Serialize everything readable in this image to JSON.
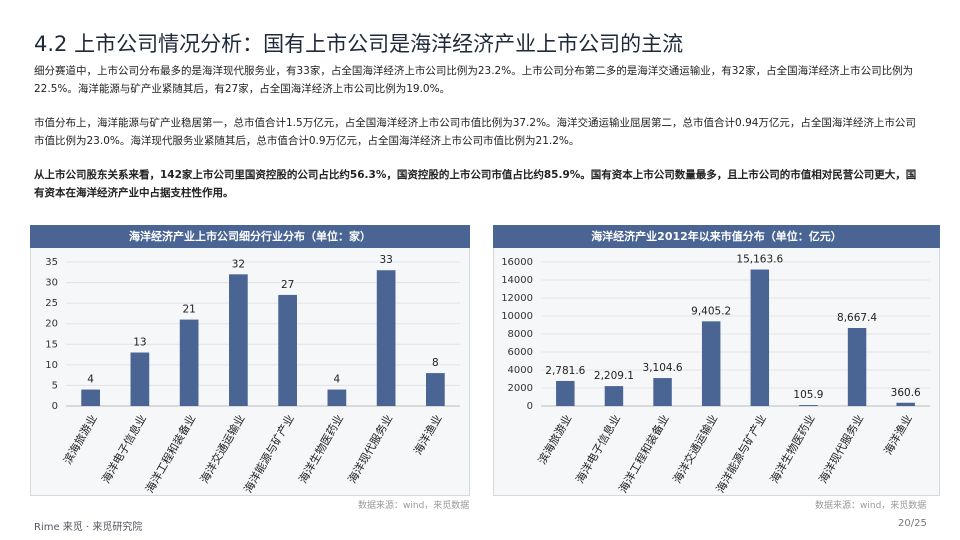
{
  "header": {
    "title": "4.2 上市公司情况分析：国有上市公司是海洋经济产业上市公司的主流"
  },
  "paragraphs": [
    "细分赛道中，上市公司分布最多的是海洋现代服务业，有33家，占全国海洋经济上市公司比例为23.2%。上市公司分布第二多的是海洋交通运输业，有32家，占全国海洋经济上市公司比例为22.5%。海洋能源与矿产业紧随其后，有27家，占全国海洋经济上市公司比例为19.0%。",
    "市值分布上，海洋能源与矿产业稳居第一，总市值合计1.5万亿元，占全国海洋经济上市公司市值比例为37.2%。海洋交通运输业屈居第二，总市值合计0.94万亿元，占全国海洋经济上市公司市值比例为23.0%。海洋现代服务业紧随其后，总市值合计0.9万亿元，占全国海洋经济上市公司市值比例为21.2%。",
    "从上市公司股东关系来看，142家上市公司里国资控股的公司占比约56.3%，国资控股的上市公司市值占比约85.9%。国有资本上市公司数量最多，且上市公司的市值相对民营公司更大，国有资本在海洋经济产业中占据支柱性作用。"
  ],
  "chart_data": [
    {
      "type": "bar",
      "title": "海洋经济产业上市公司细分行业分布（单位：家）",
      "categories": [
        "滨海旅游业",
        "海洋电子信息业",
        "海洋工程和装备业",
        "海洋交通运输业",
        "海洋能源与矿产业",
        "海洋生物医药业",
        "海洋现代服务业",
        "海洋渔业"
      ],
      "values": [
        4,
        13,
        21,
        32,
        27,
        4,
        33,
        8
      ],
      "color": "#4a6593",
      "ylim": [
        0,
        35
      ],
      "yticks": [
        0,
        5,
        10,
        15,
        20,
        25,
        30,
        35
      ],
      "grid": true,
      "source": "数据来源：wind，来觅数据"
    },
    {
      "type": "bar",
      "title": "海洋经济产业2012年以来市值分布（单位：亿元）",
      "categories": [
        "滨海旅游业",
        "海洋电子信息业",
        "海洋工程和装备业",
        "海洋交通运输业",
        "海洋能源与矿产业",
        "海洋生物医药业",
        "海洋现代服务业",
        "海洋渔业"
      ],
      "values": [
        2781.6,
        2209.1,
        3104.6,
        9405.2,
        15163.6,
        105.9,
        8667.4,
        360.6
      ],
      "value_labels": [
        "2,781.6",
        "2,209.1",
        "3,104.6",
        "9,405.2",
        "15,163.6",
        "105.9",
        "8,667.4",
        "360.6"
      ],
      "color": "#4a6593",
      "ylim": [
        0,
        16000
      ],
      "yticks": [
        0,
        2000,
        4000,
        6000,
        8000,
        10000,
        12000,
        14000,
        16000
      ],
      "grid": true,
      "source": "数据来源：wind，来觅数据"
    }
  ],
  "footer": {
    "brand": "Rime 来觅 · 来觅研究院",
    "page": "20/25"
  }
}
